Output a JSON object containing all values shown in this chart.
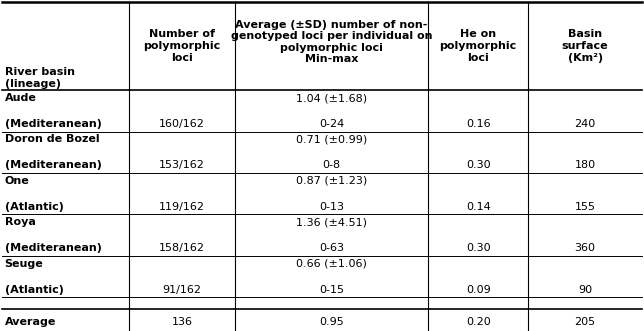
{
  "header_row_label": "River basin\n(lineage)",
  "col1_header": "Number of\npolymorphic\nloci",
  "col2_header": "Average (±SD) number of non-\ngenotyped loci per individual on\npolymorphic loci\nMin-max",
  "col3_header": "He on\npolymorphic\nloci",
  "col4_header": "Basin\nsurface\n(Km²)",
  "rows": [
    {
      "label1": "Aude",
      "label2": "(Mediteranean)",
      "poly_loci": "160/162",
      "avg_sd": "1.04 (±1.68)",
      "min_max": "0-24",
      "he": "0.16",
      "surface": "240"
    },
    {
      "label1": "Doron de Bozel",
      "label2": "(Mediteranean)",
      "poly_loci": "153/162",
      "avg_sd": "0.71 (±0.99)",
      "min_max": "0-8",
      "he": "0.30",
      "surface": "180"
    },
    {
      "label1": "One",
      "label2": "(Atlantic)",
      "poly_loci": "119/162",
      "avg_sd": "0.87 (±1.23)",
      "min_max": "0-13",
      "he": "0.14",
      "surface": "155"
    },
    {
      "label1": "Roya",
      "label2": "(Mediteranean)",
      "poly_loci": "158/162",
      "avg_sd": "1.36 (±4.51)",
      "min_max": "0-63",
      "he": "0.30",
      "surface": "360"
    },
    {
      "label1": "Seuge",
      "label2": "(Atlantic)",
      "poly_loci": "91/162",
      "avg_sd": "0.66 (±1.06)",
      "min_max": "0-15",
      "he": "0.09",
      "surface": "90"
    }
  ],
  "avg_row": {
    "label": "Average",
    "poly_loci": "136",
    "avg_sd": "0.95",
    "he": "0.20",
    "surface": "205"
  },
  "font_size": 8.0,
  "bg_color": "#ffffff"
}
